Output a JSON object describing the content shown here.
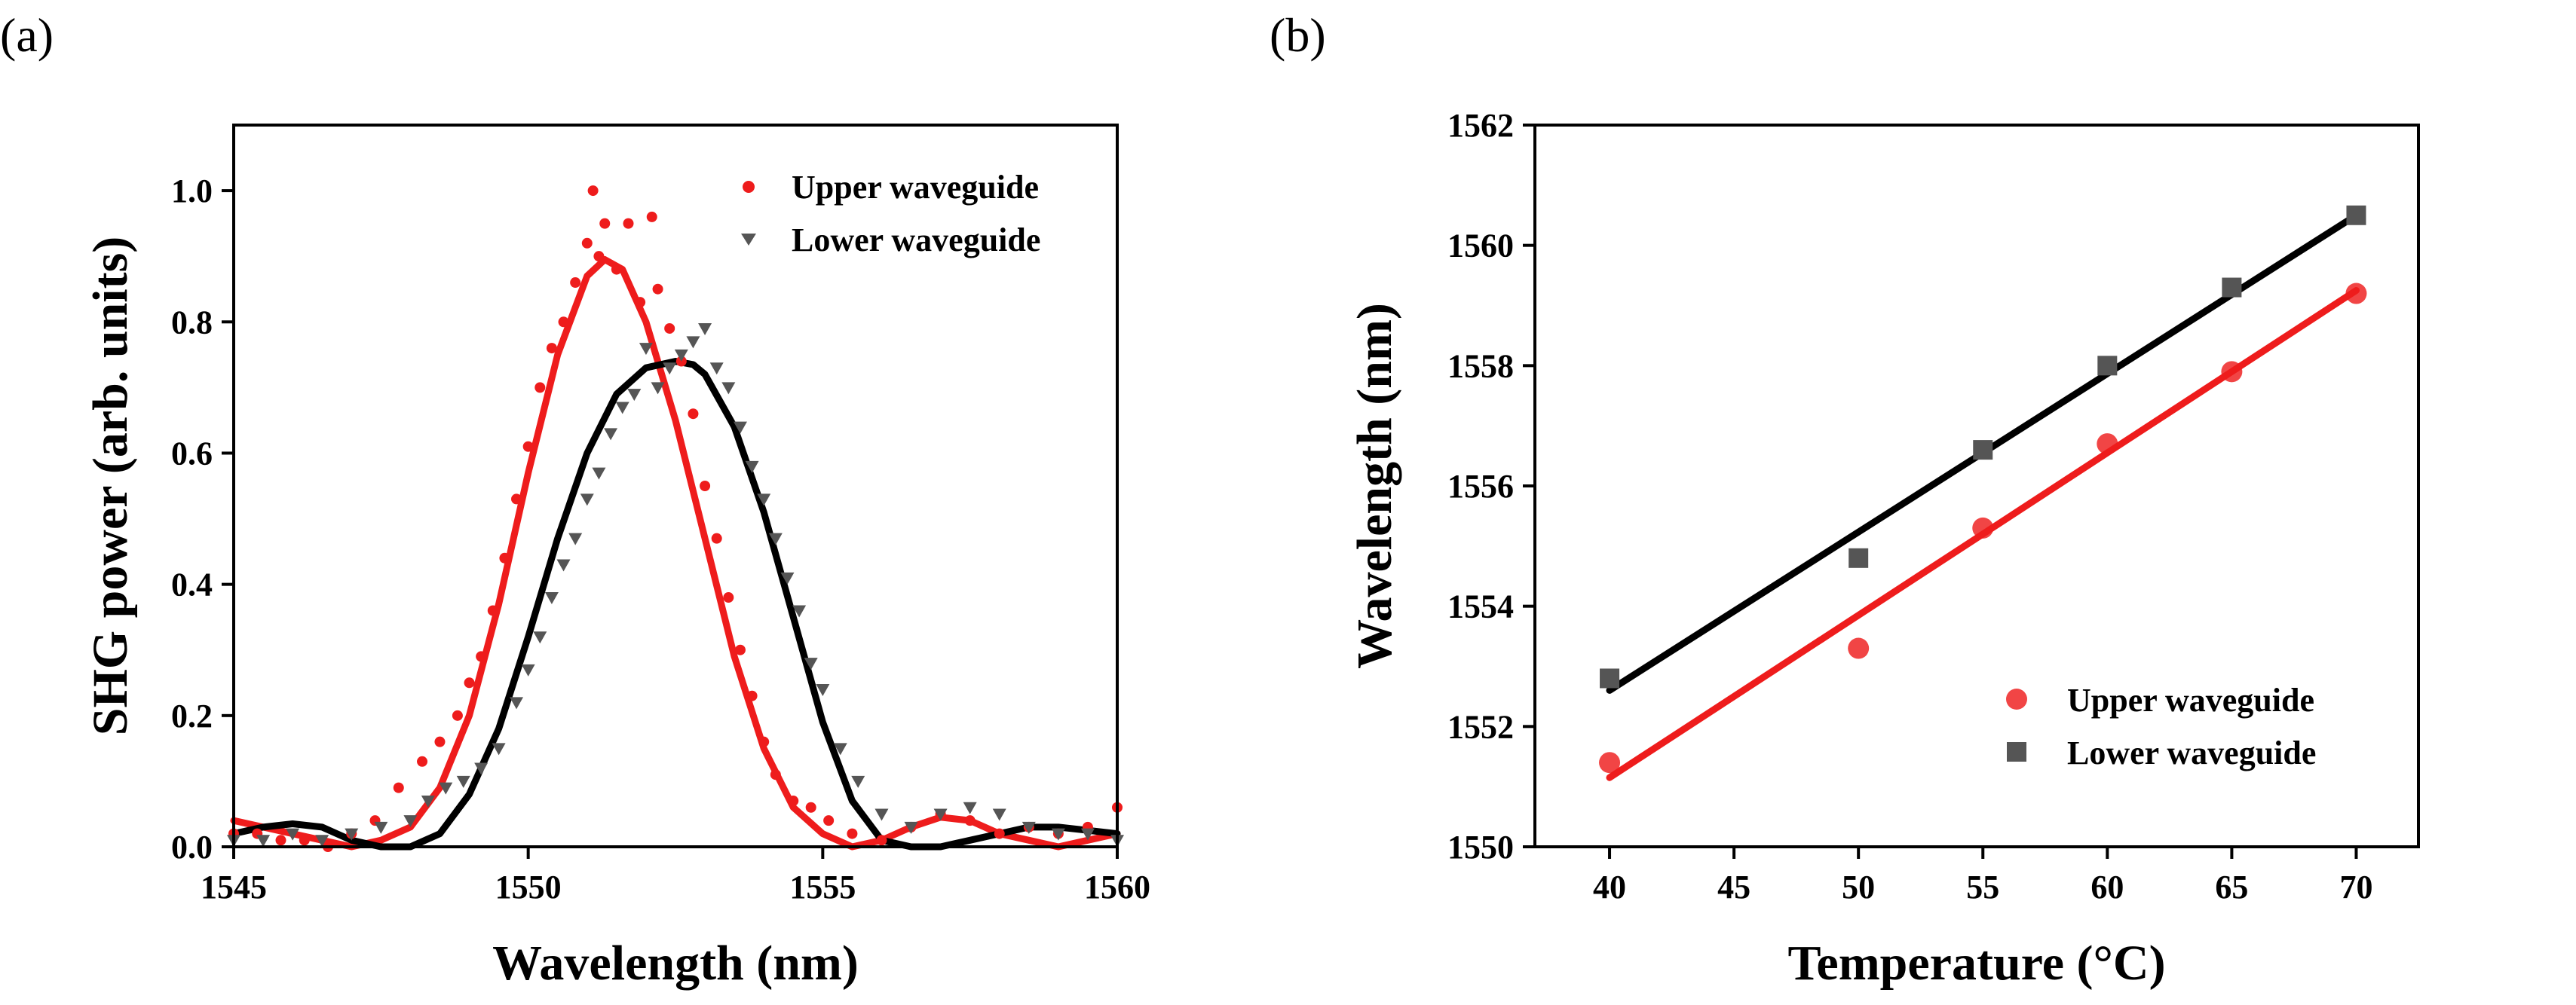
{
  "figure": {
    "panels": [
      {
        "label": "(a)",
        "xlabel": "Wavelength (nm)",
        "ylabel": "SHG power (arb. units)",
        "xticks": [
          "1545",
          "1550",
          "1555",
          "1560"
        ],
        "yticks": [
          "0.0",
          "0.2",
          "0.4",
          "0.6",
          "0.8",
          "1.0"
        ],
        "legend": [
          "Upper waveguide",
          "Lower waveguide"
        ]
      },
      {
        "label": "(b)",
        "xlabel": "Temperature (°C)",
        "ylabel": "Wavelength (nm)",
        "xticks": [
          "40",
          "45",
          "50",
          "55",
          "60",
          "65",
          "70"
        ],
        "yticks": [
          "1550",
          "1552",
          "1554",
          "1556",
          "1558",
          "1560",
          "1562"
        ],
        "legend": [
          "Upper waveguide",
          "Lower waveguide"
        ]
      }
    ]
  },
  "chart_data": [
    {
      "type": "scatter",
      "panel": "(a)",
      "xlabel": "Wavelength (nm)",
      "ylabel": "SHG power (arb. units)",
      "xlim": [
        1545,
        1560
      ],
      "ylim": [
        0,
        1.1
      ],
      "grid": false,
      "legend_position": "top-right",
      "colors": {
        "upper": "#ee1c1c",
        "lower": "#555555",
        "upper_fit": "#ee1c1c",
        "lower_fit": "#000000"
      },
      "series": [
        {
          "name": "Upper waveguide",
          "kind": "points",
          "marker": "circle",
          "x": [
            1545.0,
            1545.4,
            1545.8,
            1546.2,
            1546.6,
            1547.0,
            1547.4,
            1547.8,
            1548.2,
            1548.5,
            1548.8,
            1549.0,
            1549.2,
            1549.4,
            1549.6,
            1549.8,
            1550.0,
            1550.2,
            1550.4,
            1550.6,
            1550.8,
            1551.0,
            1551.1,
            1551.2,
            1551.3,
            1551.5,
            1551.7,
            1551.9,
            1552.1,
            1552.2,
            1552.4,
            1552.6,
            1552.8,
            1553.0,
            1553.2,
            1553.4,
            1553.6,
            1553.8,
            1554.0,
            1554.2,
            1554.5,
            1554.8,
            1555.1,
            1555.5,
            1556.0,
            1556.5,
            1557.0,
            1557.5,
            1558.0,
            1558.5,
            1559.0,
            1559.5,
            1560.0
          ],
          "y": [
            0.02,
            0.02,
            0.01,
            0.01,
            0.0,
            0.02,
            0.04,
            0.09,
            0.13,
            0.16,
            0.2,
            0.25,
            0.29,
            0.36,
            0.44,
            0.53,
            0.61,
            0.7,
            0.76,
            0.8,
            0.86,
            0.92,
            1.0,
            0.9,
            0.95,
            0.88,
            0.95,
            0.83,
            0.96,
            0.85,
            0.79,
            0.74,
            0.66,
            0.55,
            0.47,
            0.38,
            0.3,
            0.23,
            0.16,
            0.11,
            0.07,
            0.06,
            0.04,
            0.02,
            0.01,
            0.03,
            0.05,
            0.04,
            0.02,
            0.03,
            0.02,
            0.03,
            0.06
          ]
        },
        {
          "name": "Lower waveguide",
          "kind": "points",
          "marker": "triangle-down",
          "x": [
            1545.0,
            1545.5,
            1546.0,
            1546.5,
            1547.0,
            1547.5,
            1548.0,
            1548.3,
            1548.6,
            1548.9,
            1549.2,
            1549.5,
            1549.8,
            1550.0,
            1550.2,
            1550.4,
            1550.6,
            1550.8,
            1551.0,
            1551.2,
            1551.4,
            1551.6,
            1551.8,
            1552.0,
            1552.2,
            1552.4,
            1552.6,
            1552.8,
            1553.0,
            1553.2,
            1553.4,
            1553.6,
            1553.8,
            1554.0,
            1554.2,
            1554.4,
            1554.6,
            1554.8,
            1555.0,
            1555.3,
            1555.6,
            1556.0,
            1556.5,
            1557.0,
            1557.5,
            1558.0,
            1558.5,
            1559.0,
            1559.5,
            1560.0
          ],
          "y": [
            0.01,
            0.01,
            0.02,
            0.01,
            0.02,
            0.03,
            0.04,
            0.07,
            0.09,
            0.1,
            0.12,
            0.15,
            0.22,
            0.27,
            0.32,
            0.38,
            0.43,
            0.47,
            0.53,
            0.57,
            0.63,
            0.67,
            0.69,
            0.76,
            0.7,
            0.73,
            0.75,
            0.77,
            0.79,
            0.73,
            0.7,
            0.64,
            0.58,
            0.53,
            0.47,
            0.41,
            0.36,
            0.28,
            0.24,
            0.15,
            0.1,
            0.05,
            0.03,
            0.05,
            0.06,
            0.05,
            0.03,
            0.02,
            0.02,
            0.01
          ]
        },
        {
          "name": "Upper waveguide fit",
          "kind": "line",
          "x": [
            1545.0,
            1545.5,
            1546.0,
            1546.5,
            1547.0,
            1547.5,
            1548.0,
            1548.5,
            1549.0,
            1549.5,
            1550.0,
            1550.5,
            1551.0,
            1551.3,
            1551.6,
            1552.0,
            1552.5,
            1553.0,
            1553.5,
            1554.0,
            1554.5,
            1555.0,
            1555.5,
            1556.0,
            1556.5,
            1557.0,
            1557.5,
            1558.0,
            1558.5,
            1559.0,
            1559.5,
            1560.0
          ],
          "y": [
            0.04,
            0.03,
            0.02,
            0.01,
            0.0,
            0.01,
            0.03,
            0.09,
            0.2,
            0.37,
            0.57,
            0.75,
            0.87,
            0.895,
            0.88,
            0.8,
            0.65,
            0.47,
            0.29,
            0.15,
            0.06,
            0.02,
            0.0,
            0.01,
            0.03,
            0.045,
            0.04,
            0.02,
            0.01,
            0.0,
            0.01,
            0.02
          ]
        },
        {
          "name": "Lower waveguide fit",
          "kind": "line",
          "x": [
            1545.0,
            1545.5,
            1546.0,
            1546.5,
            1547.0,
            1547.5,
            1548.0,
            1548.5,
            1549.0,
            1549.5,
            1550.0,
            1550.5,
            1551.0,
            1551.5,
            1552.0,
            1552.5,
            1552.8,
            1553.0,
            1553.5,
            1554.0,
            1554.5,
            1555.0,
            1555.5,
            1556.0,
            1556.5,
            1557.0,
            1557.5,
            1558.0,
            1558.5,
            1559.0,
            1559.5,
            1560.0
          ],
          "y": [
            0.02,
            0.03,
            0.035,
            0.03,
            0.01,
            0.0,
            0.0,
            0.02,
            0.08,
            0.18,
            0.32,
            0.47,
            0.6,
            0.69,
            0.73,
            0.74,
            0.735,
            0.72,
            0.64,
            0.51,
            0.35,
            0.19,
            0.07,
            0.01,
            0.0,
            0.0,
            0.01,
            0.02,
            0.03,
            0.03,
            0.025,
            0.02
          ]
        }
      ]
    },
    {
      "type": "scatter",
      "panel": "(b)",
      "xlabel": "Temperature (°C)",
      "ylabel": "Wavelength (nm)",
      "xlim": [
        37,
        72.5
      ],
      "ylim": [
        1550,
        1562
      ],
      "grid": false,
      "legend_position": "bottom-right",
      "colors": {
        "upper": "#ee1c1c",
        "lower": "#555555",
        "upper_fit": "#ee1c1c",
        "lower_fit": "#000000"
      },
      "series": [
        {
          "name": "Upper waveguide",
          "kind": "points",
          "marker": "circle",
          "x": [
            40,
            50,
            55,
            60,
            65,
            70
          ],
          "y": [
            1551.4,
            1553.3,
            1555.3,
            1556.7,
            1557.9,
            1559.2
          ]
        },
        {
          "name": "Lower waveguide",
          "kind": "points",
          "marker": "square",
          "x": [
            40,
            50,
            55,
            60,
            65,
            70
          ],
          "y": [
            1552.8,
            1554.8,
            1556.6,
            1558.0,
            1559.3,
            1560.5
          ]
        },
        {
          "name": "Upper waveguide fit",
          "kind": "line",
          "x": [
            40,
            70
          ],
          "y": [
            1551.15,
            1559.25
          ]
        },
        {
          "name": "Lower waveguide fit",
          "kind": "line",
          "x": [
            40,
            70
          ],
          "y": [
            1552.6,
            1560.5
          ]
        }
      ]
    }
  ]
}
